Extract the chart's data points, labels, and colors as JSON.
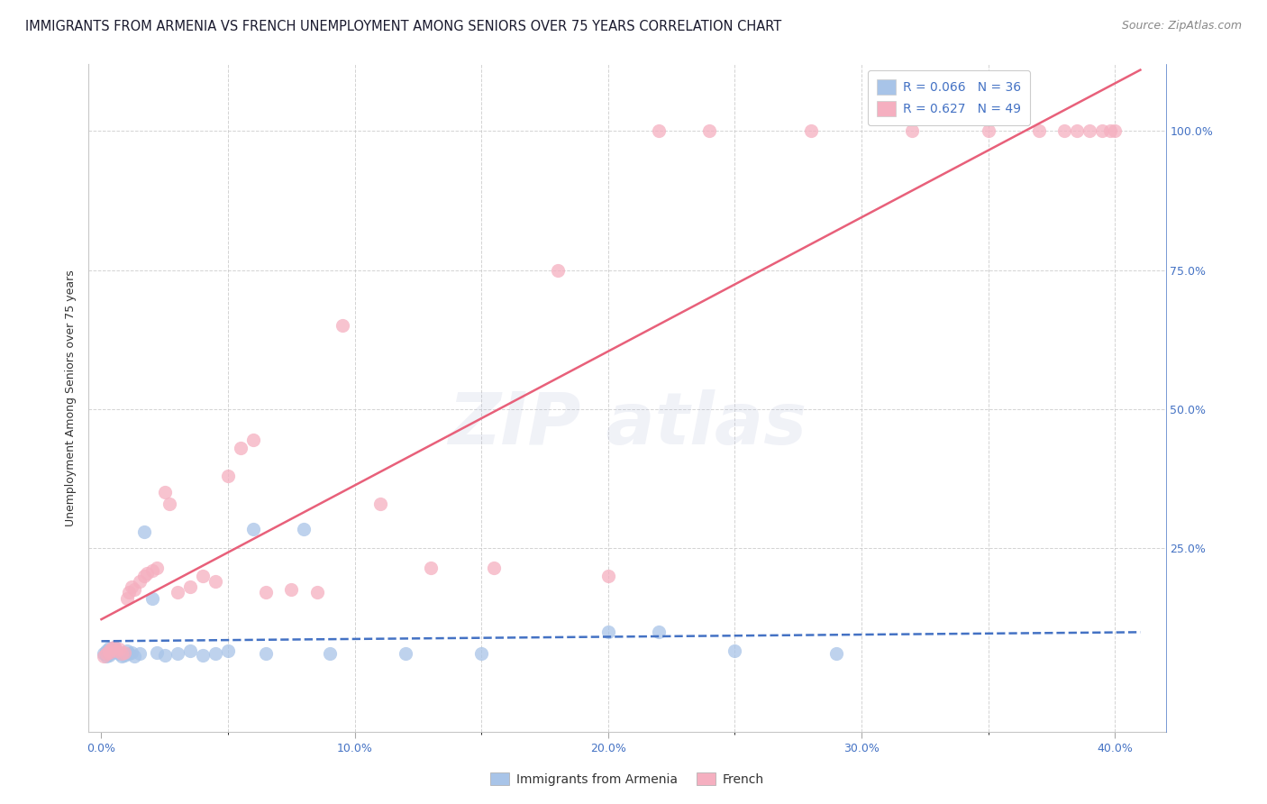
{
  "title": "IMMIGRANTS FROM ARMENIA VS FRENCH UNEMPLOYMENT AMONG SENIORS OVER 75 YEARS CORRELATION CHART",
  "source": "Source: ZipAtlas.com",
  "ylabel": "Unemployment Among Seniors over 75 years",
  "x_tick_labels": [
    "0.0%",
    "",
    "10.0%",
    "",
    "20.0%",
    "",
    "30.0%",
    "",
    "40.0%"
  ],
  "x_tick_positions": [
    0.0,
    0.05,
    0.1,
    0.15,
    0.2,
    0.25,
    0.3,
    0.35,
    0.4
  ],
  "xlim": [
    -0.005,
    0.42
  ],
  "ylim": [
    -0.08,
    1.12
  ],
  "legend_R1": "R = 0.066",
  "legend_N1": "N = 36",
  "legend_R2": "R = 0.627",
  "legend_N2": "N = 49",
  "legend_label1": "Immigrants from Armenia",
  "legend_label2": "French",
  "color_armenia": "#a8c4e8",
  "color_french": "#f5afc0",
  "color_armenia_line": "#4472c4",
  "color_french_line": "#e8607a",
  "color_blue_text": "#4472c4",
  "color_title": "#1a1a2e",
  "color_source": "#888888",
  "color_grid": "#c8c8c8",
  "background_color": "#ffffff",
  "title_fontsize": 10.5,
  "source_fontsize": 9,
  "axis_label_fontsize": 9,
  "tick_fontsize": 9,
  "legend_fontsize": 10,
  "scatter_size": 120,
  "line_width": 1.8,
  "watermark_text": "ZIP atlas",
  "watermark_color": "#b0b8d8",
  "watermark_alpha": 0.18,
  "scatter_armenia_x": [
    0.001,
    0.002,
    0.002,
    0.003,
    0.003,
    0.004,
    0.005,
    0.005,
    0.006,
    0.007,
    0.008,
    0.009,
    0.01,
    0.011,
    0.012,
    0.013,
    0.015,
    0.017,
    0.02,
    0.022,
    0.025,
    0.03,
    0.035,
    0.04,
    0.045,
    0.05,
    0.06,
    0.065,
    0.08,
    0.09,
    0.12,
    0.15,
    0.2,
    0.22,
    0.25,
    0.29
  ],
  "scatter_armenia_y": [
    0.06,
    0.055,
    0.065,
    0.058,
    0.07,
    0.062,
    0.068,
    0.072,
    0.065,
    0.06,
    0.055,
    0.058,
    0.065,
    0.06,
    0.062,
    0.055,
    0.06,
    0.28,
    0.16,
    0.062,
    0.058,
    0.06,
    0.065,
    0.058,
    0.06,
    0.065,
    0.285,
    0.06,
    0.285,
    0.06,
    0.06,
    0.06,
    0.1,
    0.1,
    0.065,
    0.06
  ],
  "scatter_french_x": [
    0.001,
    0.002,
    0.003,
    0.003,
    0.004,
    0.005,
    0.006,
    0.007,
    0.008,
    0.009,
    0.01,
    0.011,
    0.012,
    0.013,
    0.015,
    0.017,
    0.018,
    0.02,
    0.022,
    0.025,
    0.027,
    0.03,
    0.035,
    0.04,
    0.045,
    0.05,
    0.055,
    0.06,
    0.065,
    0.075,
    0.085,
    0.095,
    0.11,
    0.13,
    0.155,
    0.18,
    0.2,
    0.22,
    0.24,
    0.28,
    0.32,
    0.35,
    0.37,
    0.38,
    0.385,
    0.39,
    0.395,
    0.398,
    0.4
  ],
  "scatter_french_y": [
    0.055,
    0.06,
    0.062,
    0.065,
    0.07,
    0.072,
    0.065,
    0.068,
    0.06,
    0.062,
    0.16,
    0.17,
    0.18,
    0.175,
    0.19,
    0.2,
    0.205,
    0.21,
    0.215,
    0.35,
    0.33,
    0.17,
    0.18,
    0.2,
    0.19,
    0.38,
    0.43,
    0.445,
    0.17,
    0.175,
    0.17,
    0.65,
    0.33,
    0.215,
    0.215,
    0.75,
    0.2,
    1.0,
    1.0,
    1.0,
    1.0,
    1.0,
    1.0,
    1.0,
    1.0,
    1.0,
    1.0,
    1.0,
    1.0
  ]
}
